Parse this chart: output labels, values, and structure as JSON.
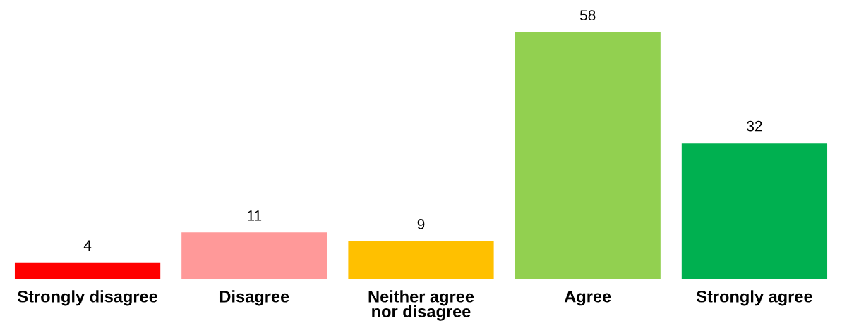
{
  "chart_data": {
    "type": "bar",
    "categories": [
      "Strongly disagree",
      "Disagree",
      "Neither agree\nnor disagree",
      "Agree",
      "Strongly agree"
    ],
    "values": [
      4,
      11,
      9,
      58,
      32
    ],
    "colors": [
      "#ff0000",
      "#ff9999",
      "#ffc000",
      "#92d050",
      "#00b050"
    ],
    "data_labels": true,
    "tick_labels": "x",
    "grid": false
  }
}
